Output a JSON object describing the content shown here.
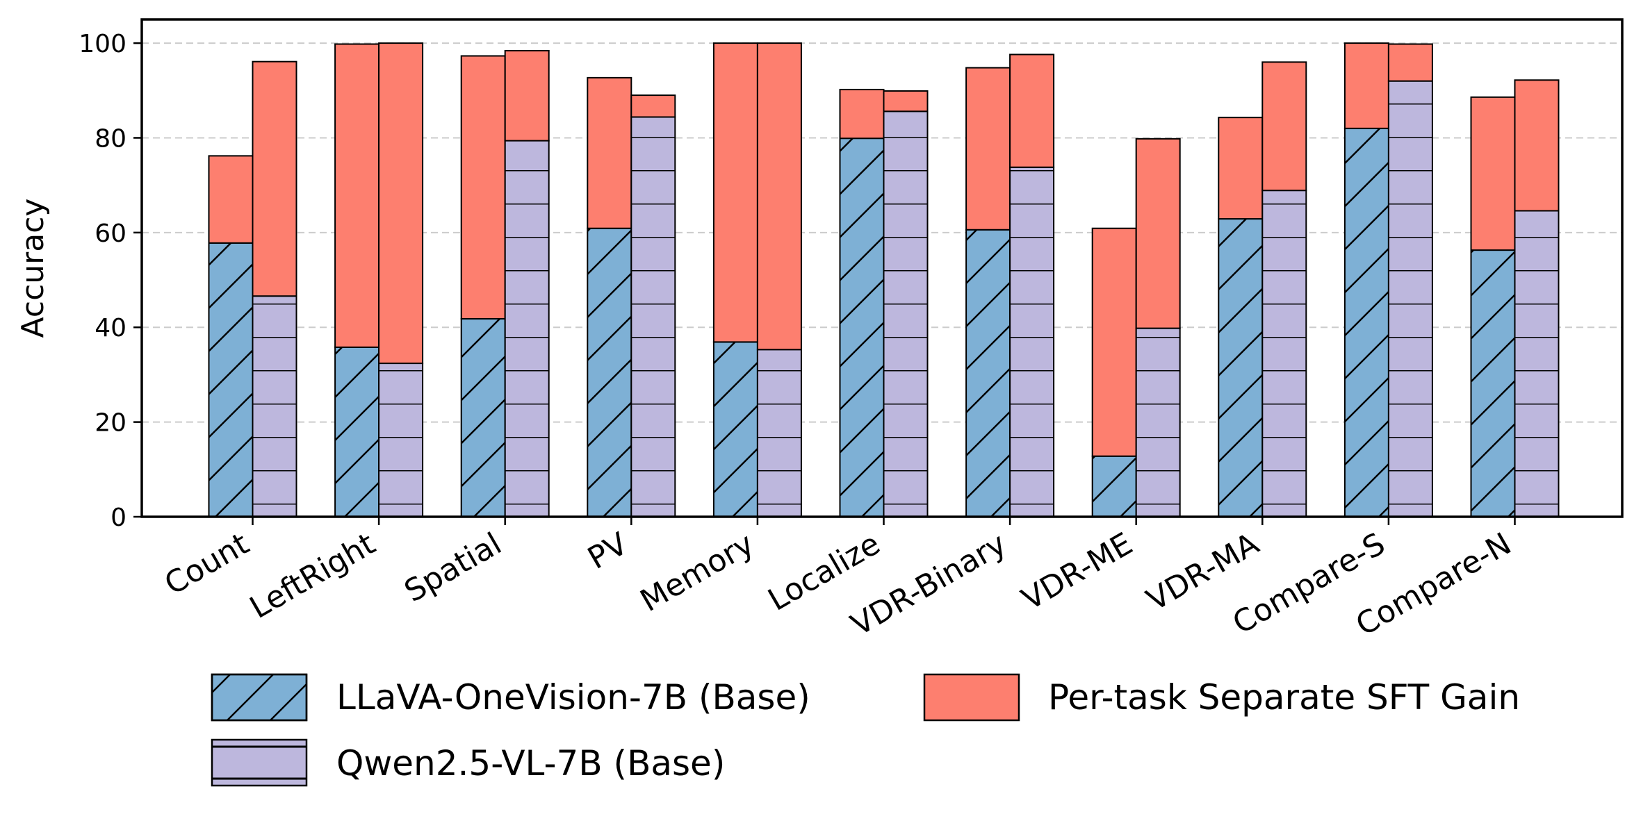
{
  "chart_data": {
    "type": "bar",
    "title": "",
    "xlabel": "",
    "ylabel": "Accuracy",
    "ylim": [
      0,
      105
    ],
    "yticks": [
      0,
      20,
      40,
      60,
      80,
      100
    ],
    "grid": "horizontal-dashed",
    "categories": [
      "Count",
      "LeftRight",
      "Spatial",
      "PV",
      "Memory",
      "Localize",
      "VDR-Binary",
      "VDR-ME",
      "VDR-MA",
      "Compare-S",
      "Compare-N"
    ],
    "series": [
      {
        "name": "LLaVA-OneVision-7B (Base)",
        "color": "#7eb0d5",
        "hatch": "diagonal",
        "base": [
          57.8,
          35.8,
          41.8,
          60.9,
          36.9,
          79.9,
          60.6,
          12.8,
          62.9,
          82.0,
          56.3
        ],
        "total": [
          76.2,
          99.8,
          97.3,
          92.7,
          100.0,
          90.2,
          94.8,
          60.9,
          84.3,
          100.0,
          88.6
        ]
      },
      {
        "name": "Qwen2.5-VL-7B (Base)",
        "color": "#bdb7dd",
        "hatch": "horizontal",
        "base": [
          46.6,
          32.4,
          79.4,
          84.4,
          35.3,
          85.6,
          73.8,
          39.8,
          68.9,
          92.0,
          64.6
        ],
        "total": [
          96.1,
          100.0,
          98.4,
          89.0,
          100.0,
          89.9,
          97.6,
          79.8,
          96.0,
          99.8,
          92.2
        ]
      }
    ],
    "gain_series": {
      "name": "Per-task Separate SFT Gain",
      "color": "#fd7f6f"
    },
    "legend": {
      "position": "bottom",
      "entries": [
        "LLaVA-OneVision-7B (Base)",
        "Qwen2.5-VL-7B (Base)",
        "Per-task Separate SFT Gain"
      ]
    }
  }
}
